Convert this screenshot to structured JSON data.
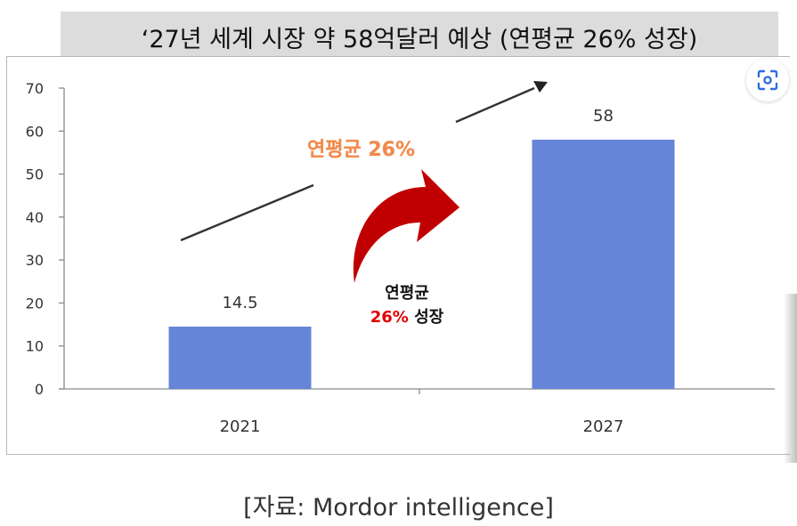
{
  "header": {
    "title": "‘27년 세계 시장 약 58억달러 예상 (연평균 26% 성장)"
  },
  "annotations": {
    "cagr_line": "연평균 26%",
    "center_line1": "연평균",
    "center_red": "26%",
    "center_rest": " 성장"
  },
  "source": "[자료: Mordor intelligence]",
  "colors": {
    "bar": "#6684d8",
    "arrow_red": "#c00000",
    "accent_orange": "#f08a4b"
  },
  "icons": {
    "lens": "visual-search-icon"
  },
  "chart_data": {
    "type": "bar",
    "categories": [
      "2021",
      "2027"
    ],
    "values": [
      14.5,
      58
    ],
    "data_labels": [
      "14.5",
      "58"
    ],
    "yticks": [
      "0",
      "10",
      "20",
      "30",
      "40",
      "50",
      "60",
      "70"
    ],
    "ylim": [
      0,
      70
    ],
    "grid": false,
    "title": "",
    "xlabel": "",
    "ylabel": ""
  }
}
